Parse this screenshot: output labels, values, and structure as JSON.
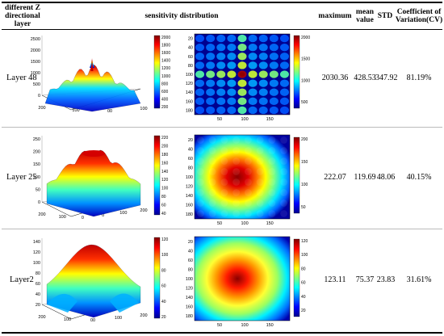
{
  "header": {
    "layer_col": [
      "different Z",
      "directional",
      "layer"
    ],
    "sensitivity_col": "sensitivity distribution",
    "maximum_col": "maximum",
    "mean_col": [
      "mean",
      "value"
    ],
    "std_col": "STD",
    "cv_col": [
      "Coefficient of",
      "Variation(CV)"
    ]
  },
  "rows": [
    {
      "layer": "Layer 48",
      "maximum": "2030.36",
      "mean": "428.53",
      "std": "347.92",
      "cv": "81.19%",
      "surface_z_ticks": [
        "2500",
        "2000",
        "1500",
        "1000",
        "500",
        "0"
      ],
      "surface_axis_ticks": [
        "200",
        "100",
        "00",
        "100"
      ],
      "surface_colorbar_ticks": [
        "2000",
        "1800",
        "1600",
        "1400",
        "1200",
        "1000",
        "800",
        "600",
        "400",
        "200"
      ],
      "heatmap_y_ticks": [
        "20",
        "40",
        "60",
        "80",
        "100",
        "120",
        "140",
        "160",
        "180"
      ],
      "heatmap_x_ticks": [
        "50",
        "100",
        "150"
      ],
      "heatmap_colorbar_ticks": [
        "2000",
        "1500",
        "1000",
        "500"
      ]
    },
    {
      "layer": "Layer 25",
      "maximum": "222.07",
      "mean": "119.69",
      "std": "48.06",
      "cv": "40.15%",
      "surface_z_ticks": [
        "250",
        "200",
        "150",
        "100",
        "50",
        "0"
      ],
      "surface_axis_ticks": [
        "200",
        "100",
        "0",
        "0",
        "100",
        "200"
      ],
      "surface_colorbar_ticks": [
        "220",
        "200",
        "180",
        "160",
        "140",
        "120",
        "100",
        "80",
        "60",
        "40"
      ],
      "heatmap_y_ticks": [
        "20",
        "40",
        "60",
        "80",
        "100",
        "120",
        "140",
        "160",
        "180"
      ],
      "heatmap_x_ticks": [
        "50",
        "100",
        "150"
      ],
      "heatmap_colorbar_ticks": [
        "200",
        "150",
        "100",
        "50"
      ]
    },
    {
      "layer": "Layer2",
      "maximum": "123.11",
      "mean": "75.37",
      "std": "23.83",
      "cv": "31.61%",
      "surface_z_ticks": [
        "140",
        "120",
        "100",
        "80",
        "60",
        "40",
        "20"
      ],
      "surface_axis_ticks": [
        "200",
        "100",
        "00",
        "100",
        "200"
      ],
      "surface_colorbar_ticks": [
        "120",
        "100",
        "80",
        "60",
        "40",
        "20"
      ],
      "heatmap_y_ticks": [
        "20",
        "40",
        "60",
        "80",
        "100",
        "120",
        "140",
        "160",
        "180"
      ],
      "heatmap_x_ticks": [
        "50",
        "100",
        "150"
      ],
      "heatmap_colorbar_ticks": [
        "120",
        "100",
        "80",
        "60",
        "40",
        "20"
      ]
    }
  ]
}
